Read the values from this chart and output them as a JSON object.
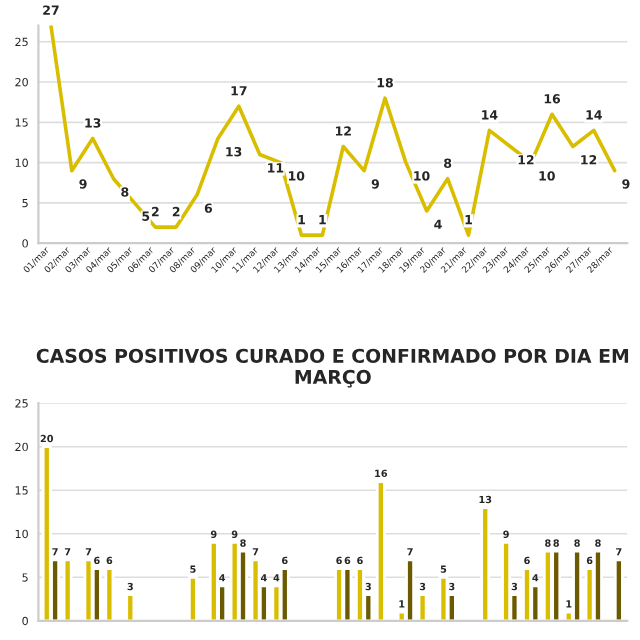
{
  "chart_data": [
    {
      "type": "line",
      "categories": [
        "01/mar",
        "02/mar",
        "03/mar",
        "04/mar",
        "05/mar",
        "06/mar",
        "07/mar",
        "08/mar",
        "09/mar",
        "10/mar",
        "11/mar",
        "12/mar",
        "13/mar",
        "14/mar",
        "15/mar",
        "16/mar",
        "17/mar",
        "18/mar",
        "19/mar",
        "20/mar",
        "21/mar",
        "22/mar",
        "23/mar",
        "24/mar",
        "25/mar",
        "26/mar",
        "27/mar",
        "28/mar"
      ],
      "series": [
        {
          "color": "#d9be00",
          "values": [
            27,
            9,
            13,
            8,
            5,
            2,
            2,
            6,
            13,
            17,
            11,
            10,
            1,
            1,
            12,
            9,
            18,
            10,
            4,
            8,
            1,
            14,
            12,
            10,
            16,
            12,
            14,
            9
          ]
        }
      ],
      "ylim": [
        0,
        27
      ],
      "yticks": [
        0,
        5,
        10,
        15,
        20,
        25
      ],
      "grid": "y",
      "data_labels": true,
      "line_style": "solid"
    },
    {
      "type": "bar",
      "title": "CASOS POSITIVOS CURADO E CONFIRMADO POR DIA EM MARÇO",
      "categories": [
        null,
        null,
        null,
        null,
        null,
        null,
        null,
        null,
        null,
        null,
        null,
        null,
        null,
        null,
        null,
        null,
        null,
        null,
        null,
        null,
        null,
        null,
        null,
        null,
        null,
        null,
        null,
        null
      ],
      "series": [
        {
          "color": "#d9be00",
          "values": [
            20,
            7,
            7,
            6,
            3,
            null,
            null,
            5,
            9,
            9,
            7,
            4,
            null,
            null,
            6,
            6,
            16,
            1,
            3,
            5,
            null,
            13,
            9,
            6,
            8,
            1,
            6,
            null
          ]
        },
        {
          "color": "#6b5a00",
          "values": [
            7,
            null,
            6,
            null,
            null,
            null,
            null,
            null,
            4,
            8,
            4,
            6,
            null,
            null,
            6,
            3,
            null,
            7,
            null,
            3,
            null,
            null,
            3,
            4,
            8,
            8,
            8,
            7
          ]
        }
      ],
      "ylim": [
        0,
        25
      ],
      "yticks": [
        0,
        5,
        10,
        15,
        20,
        25
      ],
      "grid": "y",
      "data_labels": true
    }
  ]
}
